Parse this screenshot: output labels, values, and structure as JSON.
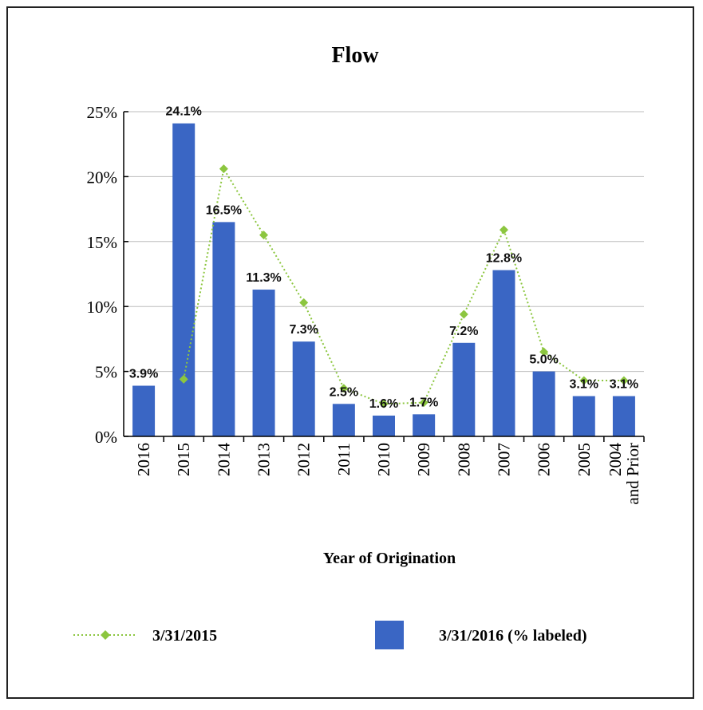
{
  "chart_data": {
    "type": "bar",
    "title": "Flow",
    "xlabel": "Year of Origination",
    "ylabel": "",
    "ylim": [
      0,
      25
    ],
    "yticks": [
      "0%",
      "5%",
      "10%",
      "15%",
      "20%",
      "25%"
    ],
    "y_unit": "%",
    "grid": true,
    "legend_position": "bottom",
    "categories": [
      [
        "2016"
      ],
      [
        "2015"
      ],
      [
        "2014"
      ],
      [
        "2013"
      ],
      [
        "2012"
      ],
      [
        "2011"
      ],
      [
        "2010"
      ],
      [
        "2009"
      ],
      [
        "2008"
      ],
      [
        "2007"
      ],
      [
        "2006"
      ],
      [
        "2005"
      ],
      [
        "2004",
        "and Prior"
      ]
    ],
    "series": [
      {
        "name": "3/31/2016 (% labeled)",
        "type": "bar",
        "color": "#3a66c4",
        "values": [
          3.9,
          24.1,
          16.5,
          11.3,
          7.3,
          2.5,
          1.6,
          1.7,
          7.2,
          12.8,
          5.0,
          3.1,
          3.1
        ],
        "labels": [
          "3.9%",
          "24.1%",
          "16.5%",
          "11.3%",
          "7.3%",
          "2.5%",
          "1.6%",
          "1.7%",
          "7.2%",
          "12.8%",
          "5.0%",
          "3.1%",
          "3.1%"
        ]
      },
      {
        "name": "3/31/2015",
        "type": "line",
        "style": "dotted",
        "marker": "diamond",
        "color": "#8cc63f",
        "values": [
          null,
          4.4,
          20.6,
          15.5,
          10.3,
          3.7,
          2.5,
          2.6,
          9.4,
          15.9,
          6.5,
          4.3,
          4.3
        ]
      }
    ]
  }
}
